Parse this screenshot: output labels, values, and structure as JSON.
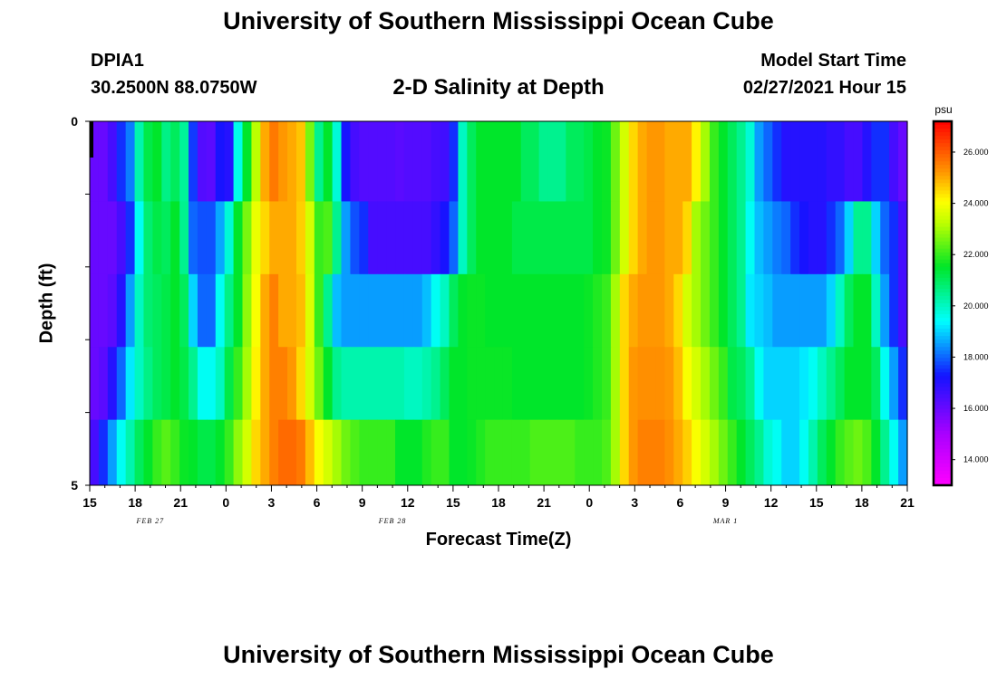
{
  "header": {
    "title": "University of Southern Mississippi Ocean Cube",
    "station_id": "DPIA1",
    "station_coords": "30.2500N 88.0750W",
    "start_label": "Model Start Time",
    "start_value": "02/27/2021 Hour 15"
  },
  "footer": {
    "title": "University of Southern Mississippi Ocean Cube"
  },
  "chart_data": {
    "type": "heatmap",
    "title": "2-D Salinity at Depth",
    "xlabel": "Forecast Time(Z)",
    "ylabel": "Depth (ft)",
    "x_tick_labels": [
      "15",
      "18",
      "21",
      "0",
      "3",
      "6",
      "9",
      "12",
      "15",
      "18",
      "21",
      "0",
      "3",
      "6",
      "9",
      "12",
      "15",
      "18",
      "21"
    ],
    "date_labels": [
      {
        "label": "FEB 27",
        "hour_index": 4
      },
      {
        "label": "FEB 28",
        "hour_index": 20
      },
      {
        "label": "MAR 1",
        "hour_index": 42
      }
    ],
    "y_tick_labels": [
      "0",
      "5"
    ],
    "ylim": [
      0,
      5
    ],
    "colorbar": {
      "unit": "psu",
      "min": 13.0,
      "max": 27.2,
      "tick_labels": [
        "14.000",
        "16.000",
        "18.000",
        "20.000",
        "22.000",
        "24.000",
        "26.000"
      ],
      "tick_values": [
        14,
        16,
        18,
        20,
        22,
        24,
        26
      ]
    },
    "depth_layers": [
      0.5,
      1.5,
      2.5,
      3.5,
      4.5
    ],
    "hours_per_column": 1,
    "salinity": [
      [
        16.0,
        16.0,
        16.5,
        17.5,
        18.2,
        20.2,
        21.2,
        21.5,
        20.6,
        21.0,
        20.4,
        17.6,
        16.3,
        16.2,
        17.2,
        17.0,
        19.6,
        21.5,
        23.2,
        25.0,
        25.6,
        25.2,
        25.0,
        24.7,
        22.6,
        20.5,
        21.5,
        19.8,
        17.2,
        16.5,
        16.3,
        16.3,
        16.3,
        16.3,
        16.2,
        16.3,
        16.3,
        16.3,
        16.5,
        16.6,
        17.5,
        20.0,
        21.0,
        21.5,
        21.5,
        21.5,
        21.5,
        21.5,
        21.0,
        21.0,
        20.5,
        20.5,
        20.5,
        21.0,
        21.0,
        21.2,
        21.5,
        21.6,
        22.5,
        23.5,
        24.5,
        25.0,
        25.2,
        25.2,
        25.0,
        25.0,
        25.0,
        24.2,
        23.0,
        22.0,
        21.5,
        21.0,
        20.5,
        19.8,
        18.5,
        18.0,
        17.5,
        17.0,
        17.0,
        17.0,
        17.0,
        17.0,
        16.8,
        16.8,
        16.5,
        16.5,
        17.0,
        17.5,
        17.5,
        16.5,
        16.0
      ],
      [
        16.0,
        16.0,
        16.0,
        16.5,
        17.5,
        19.5,
        20.8,
        21.2,
        21.0,
        21.5,
        20.5,
        18.0,
        17.8,
        17.8,
        18.6,
        19.8,
        21.5,
        22.6,
        23.8,
        24.5,
        25.0,
        25.0,
        25.0,
        24.6,
        23.5,
        22.0,
        22.2,
        20.5,
        18.5,
        17.8,
        17.5,
        16.5,
        16.5,
        16.5,
        16.5,
        16.5,
        16.5,
        16.5,
        16.8,
        17.2,
        18.0,
        20.0,
        21.0,
        21.5,
        21.5,
        21.5,
        21.5,
        21.2,
        21.2,
        21.2,
        21.2,
        21.2,
        21.2,
        21.2,
        21.2,
        21.2,
        21.5,
        21.6,
        22.5,
        23.5,
        24.5,
        25.0,
        25.2,
        25.2,
        25.0,
        25.0,
        24.5,
        23.0,
        22.5,
        22.0,
        21.5,
        21.0,
        20.5,
        19.5,
        18.8,
        18.5,
        18.2,
        18.0,
        17.5,
        17.2,
        17.0,
        17.0,
        17.5,
        18.0,
        19.0,
        20.5,
        20.5,
        19.0,
        18.0,
        17.5,
        16.5
      ],
      [
        16.0,
        16.0,
        16.2,
        17.0,
        18.5,
        20.0,
        20.8,
        21.0,
        21.2,
        21.5,
        21.0,
        19.0,
        18.0,
        18.0,
        19.5,
        20.6,
        21.5,
        22.8,
        24.0,
        25.0,
        25.5,
        25.0,
        25.0,
        24.8,
        23.6,
        22.0,
        20.5,
        18.8,
        18.5,
        18.5,
        18.5,
        18.5,
        18.5,
        18.5,
        18.5,
        18.5,
        18.5,
        18.8,
        19.5,
        20.0,
        21.0,
        21.5,
        21.6,
        21.6,
        21.5,
        21.5,
        21.5,
        21.5,
        21.5,
        21.5,
        21.5,
        21.5,
        21.5,
        21.5,
        21.5,
        21.6,
        21.8,
        22.0,
        23.0,
        24.5,
        25.0,
        25.2,
        25.2,
        25.2,
        25.0,
        24.5,
        23.5,
        23.0,
        22.5,
        22.0,
        21.5,
        21.0,
        20.5,
        19.2,
        19.0,
        18.8,
        18.5,
        18.5,
        18.5,
        18.5,
        18.5,
        18.5,
        19.0,
        20.0,
        21.0,
        21.5,
        21.5,
        20.0,
        18.5,
        17.5,
        16.5
      ],
      [
        16.0,
        16.2,
        17.0,
        18.0,
        19.2,
        20.0,
        20.6,
        21.0,
        21.2,
        21.5,
        21.2,
        20.5,
        19.5,
        19.5,
        20.0,
        21.2,
        22.0,
        23.0,
        24.2,
        25.0,
        25.5,
        25.5,
        25.2,
        24.5,
        23.5,
        22.5,
        21.5,
        20.5,
        20.2,
        20.2,
        20.2,
        20.2,
        20.2,
        20.2,
        20.2,
        20.0,
        20.0,
        20.2,
        20.5,
        21.0,
        21.5,
        21.5,
        21.6,
        21.6,
        21.6,
        21.6,
        21.6,
        21.5,
        21.5,
        21.5,
        21.5,
        21.5,
        21.5,
        21.5,
        21.5,
        21.6,
        21.8,
        22.0,
        23.0,
        24.5,
        25.2,
        25.3,
        25.3,
        25.3,
        25.2,
        24.8,
        24.0,
        23.5,
        23.0,
        22.5,
        22.0,
        21.2,
        21.0,
        20.5,
        19.5,
        19.0,
        19.0,
        19.0,
        19.0,
        19.2,
        19.5,
        20.0,
        20.5,
        21.0,
        21.5,
        21.5,
        21.5,
        21.0,
        19.5,
        18.5,
        17.5
      ],
      [
        16.5,
        17.5,
        18.5,
        19.5,
        20.2,
        21.0,
        21.5,
        22.0,
        22.3,
        22.0,
        21.6,
        21.5,
        21.2,
        21.2,
        21.5,
        22.0,
        22.8,
        23.5,
        24.5,
        25.0,
        25.5,
        25.8,
        25.8,
        25.6,
        24.8,
        24.0,
        23.5,
        23.0,
        22.5,
        22.2,
        22.0,
        22.0,
        22.0,
        22.0,
        21.5,
        21.5,
        21.5,
        21.8,
        22.0,
        22.0,
        21.5,
        21.5,
        21.6,
        21.8,
        22.0,
        22.0,
        22.0,
        22.0,
        22.0,
        22.2,
        22.2,
        22.2,
        22.2,
        22.2,
        22.0,
        22.0,
        22.0,
        22.2,
        23.0,
        24.5,
        25.2,
        25.5,
        25.5,
        25.5,
        25.3,
        25.0,
        24.6,
        24.0,
        23.5,
        23.0,
        22.5,
        22.0,
        21.5,
        21.0,
        20.5,
        19.8,
        19.5,
        19.0,
        19.0,
        19.5,
        20.2,
        21.0,
        21.5,
        22.0,
        22.3,
        22.5,
        22.2,
        21.5,
        20.5,
        19.5,
        18.5
      ]
    ]
  }
}
